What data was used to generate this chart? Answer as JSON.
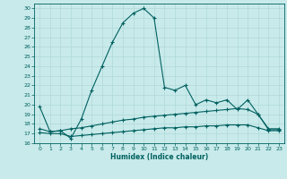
{
  "xlabel": "Humidex (Indice chaleur)",
  "bg_color": "#c8eaea",
  "line_color": "#006060",
  "grid_color": "#b0d8d8",
  "xlim": [
    -0.5,
    23.5
  ],
  "ylim": [
    16,
    30.5
  ],
  "yticks": [
    16,
    17,
    18,
    19,
    20,
    21,
    22,
    23,
    24,
    25,
    26,
    27,
    28,
    29,
    30
  ],
  "xticks": [
    0,
    1,
    2,
    3,
    4,
    5,
    6,
    7,
    8,
    9,
    10,
    11,
    12,
    13,
    14,
    15,
    16,
    17,
    18,
    19,
    20,
    21,
    22,
    23
  ],
  "main_line_x": [
    0,
    1,
    2,
    3,
    4,
    5,
    6,
    7,
    8,
    9,
    10,
    11,
    12,
    13,
    14,
    15,
    16,
    17,
    18,
    19,
    20,
    21,
    22,
    23
  ],
  "main_line_y": [
    19.8,
    17.2,
    17.3,
    16.5,
    18.5,
    21.5,
    24.0,
    26.5,
    28.5,
    29.5,
    30.0,
    29.0,
    21.8,
    21.5,
    22.0,
    20.0,
    20.5,
    20.2,
    20.5,
    19.5,
    20.5,
    19.0,
    17.4,
    17.4
  ],
  "lower_line1_x": [
    0,
    1,
    2,
    3,
    4,
    5,
    6,
    7,
    8,
    9,
    10,
    11,
    12,
    13,
    14,
    15,
    16,
    17,
    18,
    19,
    20,
    21,
    22,
    23
  ],
  "lower_line1_y": [
    17.5,
    17.2,
    17.3,
    17.5,
    17.6,
    17.8,
    18.0,
    18.2,
    18.4,
    18.5,
    18.7,
    18.8,
    18.9,
    19.0,
    19.1,
    19.2,
    19.3,
    19.4,
    19.5,
    19.6,
    19.5,
    19.0,
    17.5,
    17.5
  ],
  "lower_line2_x": [
    0,
    1,
    2,
    3,
    4,
    5,
    6,
    7,
    8,
    9,
    10,
    11,
    12,
    13,
    14,
    15,
    16,
    17,
    18,
    19,
    20,
    21,
    22,
    23
  ],
  "lower_line2_y": [
    17.1,
    17.0,
    17.0,
    16.7,
    16.8,
    16.9,
    17.0,
    17.1,
    17.2,
    17.3,
    17.4,
    17.5,
    17.6,
    17.6,
    17.7,
    17.7,
    17.8,
    17.8,
    17.9,
    17.9,
    17.9,
    17.6,
    17.3,
    17.3
  ]
}
